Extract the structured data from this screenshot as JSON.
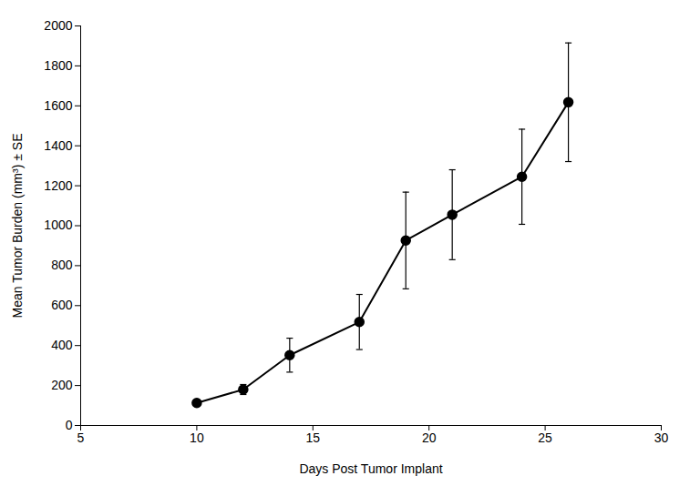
{
  "chart_data": {
    "type": "line",
    "xlabel": "Days Post Tumor Implant",
    "ylabel": "Mean Tumor Burden (mm³) ± SE",
    "x": [
      10,
      12,
      14,
      17,
      19,
      21,
      24,
      26
    ],
    "values": [
      113,
      180,
      352,
      518,
      926,
      1055,
      1245,
      1618
    ],
    "error": [
      15,
      25,
      85,
      138,
      242,
      225,
      238,
      297
    ],
    "color": "#000000",
    "marker": "circle",
    "xlim": [
      5,
      30
    ],
    "xticks": [
      5,
      10,
      15,
      20,
      25,
      30
    ],
    "ylim": [
      0,
      2000
    ],
    "yticks": [
      0,
      200,
      400,
      600,
      800,
      1000,
      1200,
      1400,
      1600,
      1800,
      2000
    ]
  }
}
